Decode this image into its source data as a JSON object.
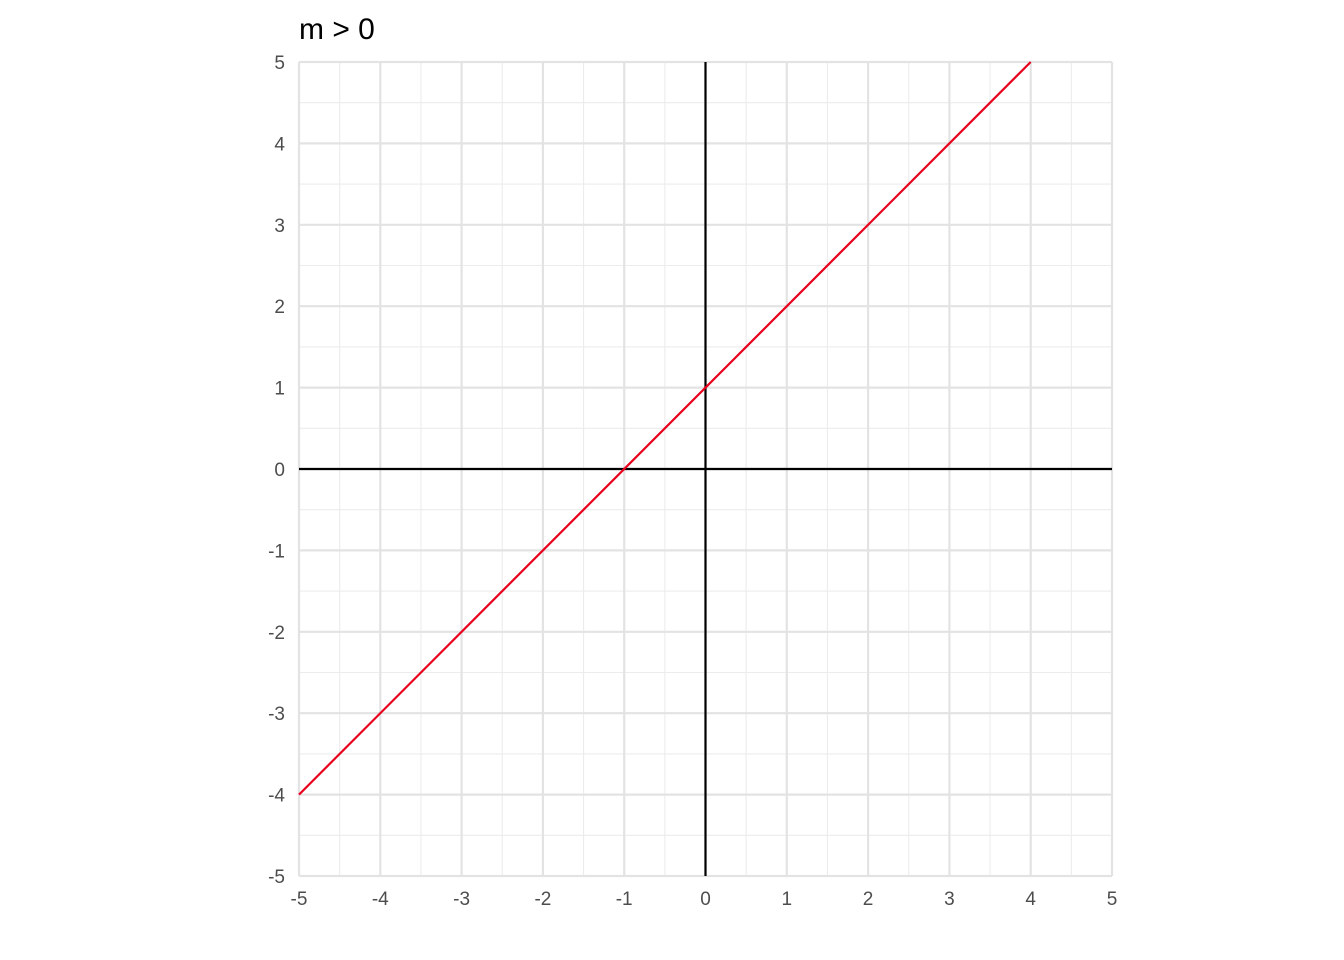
{
  "chart_data": {
    "type": "line",
    "title": "m > 0",
    "xlabel": "",
    "ylabel": "",
    "xlim": [
      -5,
      5
    ],
    "ylim": [
      -5,
      5
    ],
    "x_ticks": [
      -5,
      -4,
      -3,
      -2,
      -1,
      0,
      1,
      2,
      3,
      4,
      5
    ],
    "y_ticks": [
      -5,
      -4,
      -3,
      -2,
      -1,
      0,
      1,
      2,
      3,
      4,
      5
    ],
    "x_tick_labels": [
      "-5",
      "-4",
      "-3",
      "-2",
      "-1",
      "0",
      "1",
      "2",
      "3",
      "4",
      "5"
    ],
    "y_tick_labels": [
      "-5",
      "-4",
      "-3",
      "-2",
      "-1",
      "0",
      "1",
      "2",
      "3",
      "4",
      "5"
    ],
    "minor_grid_step": 0.5,
    "grid": true,
    "legend": "none",
    "axes_lines": {
      "x": 0,
      "y": 0,
      "color": "#000000"
    },
    "series": [
      {
        "x": [
          -5,
          4
        ],
        "y": [
          -4,
          5
        ],
        "color": "#e8001c"
      }
    ]
  }
}
